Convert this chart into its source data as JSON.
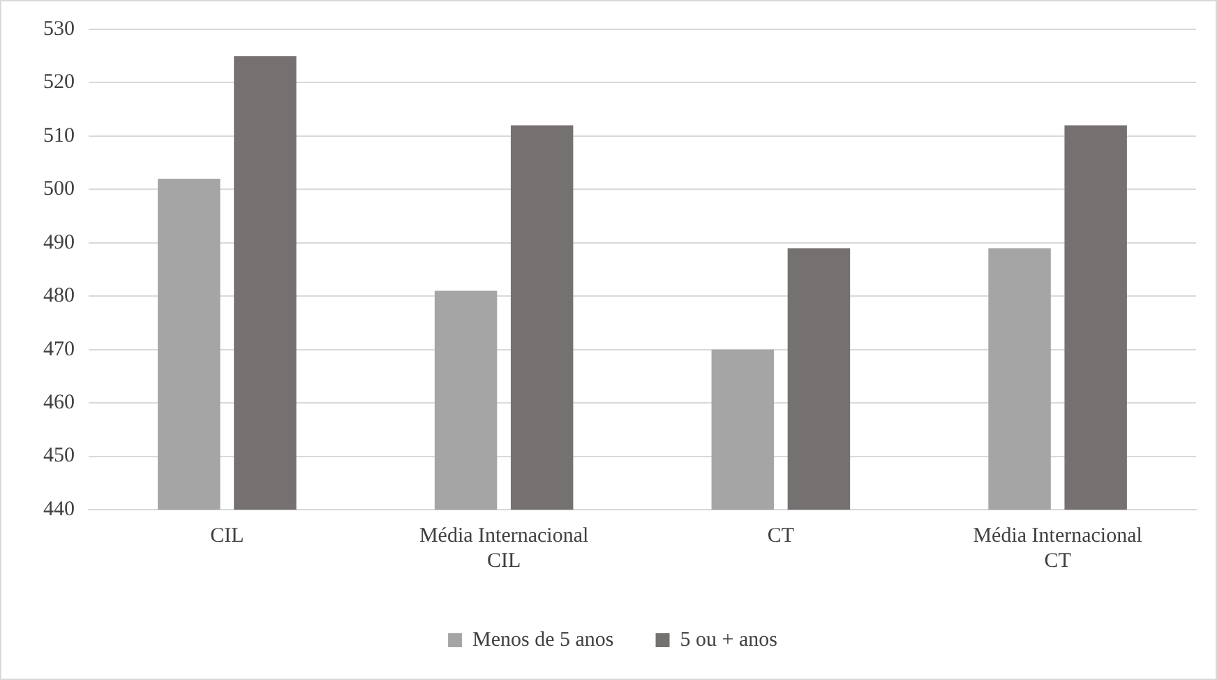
{
  "chart_data": {
    "type": "bar",
    "categories": [
      "CIL",
      "Média Internacional CIL",
      "CT",
      "Média Internacional CT"
    ],
    "series": [
      {
        "name": "Menos de 5 anos",
        "color": "#a5a5a5",
        "values": [
          502,
          481,
          470,
          489
        ]
      },
      {
        "name": "5 ou + anos",
        "color": "#767171",
        "values": [
          525,
          512,
          489,
          512
        ]
      }
    ],
    "ylim": [
      440,
      530
    ],
    "yticks": [
      440,
      450,
      460,
      470,
      480,
      490,
      500,
      510,
      520,
      530
    ],
    "grid": "y",
    "legend": "bottom"
  }
}
